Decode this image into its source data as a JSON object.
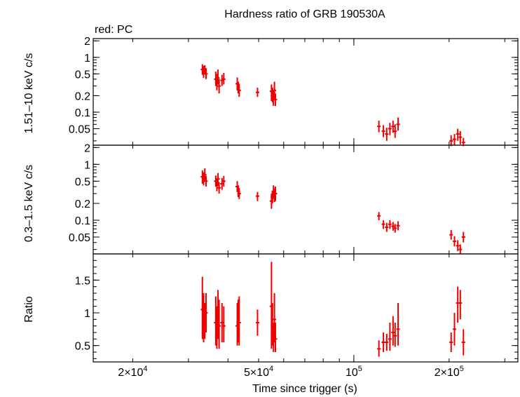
{
  "chart_data": {
    "type": "scatter",
    "title": "Hardness ratio of GRB 190530A",
    "subtitle": "red: PC",
    "xlabel": "Time since trigger (s)",
    "xscale": "log",
    "xlim": [
      15000,
      330000
    ],
    "x_ticks": [
      {
        "value": 20000,
        "mant": "2×10",
        "exp": "4"
      },
      {
        "value": 50000,
        "mant": "5×10",
        "exp": "4"
      },
      {
        "value": 100000,
        "mant": "10",
        "exp": "5"
      },
      {
        "value": 200000,
        "mant": "2×10",
        "exp": "5"
      }
    ],
    "series_color": "#ee0000",
    "panels": [
      {
        "id": "hard",
        "ylabel": "1.51–10 keV c/s",
        "yscale": "log",
        "ylim": [
          0.025,
          2.2
        ],
        "y_ticks": [
          {
            "value": 2,
            "label": "2"
          },
          {
            "value": 1,
            "label": "1"
          },
          {
            "value": 0.5,
            "label": "0.5"
          },
          {
            "value": 0.2,
            "label": "0.2"
          },
          {
            "value": 0.1,
            "label": "0.1"
          },
          {
            "value": 0.05,
            "label": "0.05"
          }
        ],
        "points": [
          {
            "x": 33200,
            "y": 0.6,
            "lo": 0.48,
            "hi": 0.75
          },
          {
            "x": 33500,
            "y": 0.55,
            "lo": 0.42,
            "hi": 0.7
          },
          {
            "x": 33800,
            "y": 0.62,
            "lo": 0.5,
            "hi": 0.72
          },
          {
            "x": 34100,
            "y": 0.5,
            "lo": 0.4,
            "hi": 0.63
          },
          {
            "x": 36600,
            "y": 0.4,
            "lo": 0.3,
            "hi": 0.55
          },
          {
            "x": 36900,
            "y": 0.35,
            "lo": 0.25,
            "hi": 0.5
          },
          {
            "x": 37200,
            "y": 0.42,
            "lo": 0.32,
            "hi": 0.6
          },
          {
            "x": 37500,
            "y": 0.3,
            "lo": 0.22,
            "hi": 0.4
          },
          {
            "x": 38300,
            "y": 0.38,
            "lo": 0.3,
            "hi": 0.48
          },
          {
            "x": 38800,
            "y": 0.4,
            "lo": 0.32,
            "hi": 0.52
          },
          {
            "x": 42800,
            "y": 0.33,
            "lo": 0.25,
            "hi": 0.43
          },
          {
            "x": 43100,
            "y": 0.28,
            "lo": 0.22,
            "hi": 0.36
          },
          {
            "x": 43400,
            "y": 0.25,
            "lo": 0.19,
            "hi": 0.33
          },
          {
            "x": 49600,
            "y": 0.23,
            "lo": 0.19,
            "hi": 0.28
          },
          {
            "x": 54900,
            "y": 0.24,
            "lo": 0.16,
            "hi": 0.32
          },
          {
            "x": 55300,
            "y": 0.2,
            "lo": 0.15,
            "hi": 0.28
          },
          {
            "x": 55700,
            "y": 0.18,
            "lo": 0.13,
            "hi": 0.25
          },
          {
            "x": 56100,
            "y": 0.25,
            "lo": 0.17,
            "hi": 0.36
          },
          {
            "x": 56500,
            "y": 0.17,
            "lo": 0.13,
            "hi": 0.22
          },
          {
            "x": 120000,
            "y": 0.055,
            "lo": 0.043,
            "hi": 0.07
          },
          {
            "x": 124000,
            "y": 0.045,
            "lo": 0.035,
            "hi": 0.058
          },
          {
            "x": 127000,
            "y": 0.04,
            "lo": 0.03,
            "hi": 0.052
          },
          {
            "x": 130000,
            "y": 0.05,
            "lo": 0.038,
            "hi": 0.064
          },
          {
            "x": 133000,
            "y": 0.055,
            "lo": 0.042,
            "hi": 0.07
          },
          {
            "x": 135000,
            "y": 0.045,
            "lo": 0.034,
            "hi": 0.06
          },
          {
            "x": 138000,
            "y": 0.06,
            "lo": 0.046,
            "hi": 0.08
          },
          {
            "x": 203000,
            "y": 0.03,
            "lo": 0.024,
            "hi": 0.038
          },
          {
            "x": 208000,
            "y": 0.032,
            "lo": 0.025,
            "hi": 0.04
          },
          {
            "x": 213000,
            "y": 0.04,
            "lo": 0.03,
            "hi": 0.05
          },
          {
            "x": 217000,
            "y": 0.035,
            "lo": 0.026,
            "hi": 0.045
          },
          {
            "x": 222000,
            "y": 0.028,
            "lo": 0.024,
            "hi": 0.034
          }
        ]
      },
      {
        "id": "soft",
        "ylabel": "0.3–1.5 keV c/s",
        "yscale": "log",
        "ylim": [
          0.025,
          2.2
        ],
        "y_ticks": [
          {
            "value": 2,
            "label": "2"
          },
          {
            "value": 1,
            "label": "1"
          },
          {
            "value": 0.5,
            "label": "0.5"
          },
          {
            "value": 0.2,
            "label": "0.2"
          },
          {
            "value": 0.1,
            "label": "0.1"
          },
          {
            "value": 0.05,
            "label": "0.05"
          }
        ],
        "points": [
          {
            "x": 33200,
            "y": 0.6,
            "lo": 0.45,
            "hi": 0.78
          },
          {
            "x": 33500,
            "y": 0.55,
            "lo": 0.42,
            "hi": 0.72
          },
          {
            "x": 33800,
            "y": 0.65,
            "lo": 0.5,
            "hi": 0.85
          },
          {
            "x": 34100,
            "y": 0.5,
            "lo": 0.4,
            "hi": 0.62
          },
          {
            "x": 36600,
            "y": 0.5,
            "lo": 0.4,
            "hi": 0.63
          },
          {
            "x": 36900,
            "y": 0.42,
            "lo": 0.33,
            "hi": 0.55
          },
          {
            "x": 37200,
            "y": 0.55,
            "lo": 0.43,
            "hi": 0.7
          },
          {
            "x": 37500,
            "y": 0.38,
            "lo": 0.3,
            "hi": 0.48
          },
          {
            "x": 38300,
            "y": 0.45,
            "lo": 0.35,
            "hi": 0.57
          },
          {
            "x": 38800,
            "y": 0.5,
            "lo": 0.4,
            "hi": 0.62
          },
          {
            "x": 42800,
            "y": 0.4,
            "lo": 0.32,
            "hi": 0.5
          },
          {
            "x": 43100,
            "y": 0.33,
            "lo": 0.26,
            "hi": 0.42
          },
          {
            "x": 43400,
            "y": 0.3,
            "lo": 0.24,
            "hi": 0.38
          },
          {
            "x": 49600,
            "y": 0.27,
            "lo": 0.22,
            "hi": 0.32
          },
          {
            "x": 54900,
            "y": 0.22,
            "lo": 0.16,
            "hi": 0.3
          },
          {
            "x": 55300,
            "y": 0.26,
            "lo": 0.2,
            "hi": 0.34
          },
          {
            "x": 55700,
            "y": 0.32,
            "lo": 0.24,
            "hi": 0.42
          },
          {
            "x": 56100,
            "y": 0.28,
            "lo": 0.21,
            "hi": 0.37
          },
          {
            "x": 56500,
            "y": 0.3,
            "lo": 0.22,
            "hi": 0.4
          },
          {
            "x": 120000,
            "y": 0.12,
            "lo": 0.1,
            "hi": 0.14
          },
          {
            "x": 124000,
            "y": 0.085,
            "lo": 0.07,
            "hi": 0.1
          },
          {
            "x": 127000,
            "y": 0.075,
            "lo": 0.062,
            "hi": 0.09
          },
          {
            "x": 130000,
            "y": 0.085,
            "lo": 0.07,
            "hi": 0.1
          },
          {
            "x": 133000,
            "y": 0.078,
            "lo": 0.065,
            "hi": 0.093
          },
          {
            "x": 135000,
            "y": 0.072,
            "lo": 0.06,
            "hi": 0.086
          },
          {
            "x": 138000,
            "y": 0.08,
            "lo": 0.066,
            "hi": 0.096
          },
          {
            "x": 203000,
            "y": 0.055,
            "lo": 0.045,
            "hi": 0.067
          },
          {
            "x": 208000,
            "y": 0.042,
            "lo": 0.034,
            "hi": 0.052
          },
          {
            "x": 213000,
            "y": 0.035,
            "lo": 0.028,
            "hi": 0.044
          },
          {
            "x": 217000,
            "y": 0.03,
            "lo": 0.025,
            "hi": 0.037
          },
          {
            "x": 222000,
            "y": 0.05,
            "lo": 0.04,
            "hi": 0.062
          }
        ]
      },
      {
        "id": "ratio",
        "ylabel": "Ratio",
        "yscale": "linear",
        "ylim": [
          0.25,
          1.9
        ],
        "y_ticks": [
          {
            "value": 0.5,
            "label": "0.5"
          },
          {
            "value": 1,
            "label": "1"
          },
          {
            "value": 1.5,
            "label": "1.5"
          }
        ],
        "points": [
          {
            "x": 33200,
            "y": 1.05,
            "lo": 0.6,
            "hi": 1.55
          },
          {
            "x": 33500,
            "y": 0.95,
            "lo": 0.55,
            "hi": 1.3
          },
          {
            "x": 33800,
            "y": 0.85,
            "lo": 0.6,
            "hi": 1.15
          },
          {
            "x": 34100,
            "y": 1.0,
            "lo": 0.7,
            "hi": 1.3
          },
          {
            "x": 36600,
            "y": 0.85,
            "lo": 0.5,
            "hi": 1.25
          },
          {
            "x": 36900,
            "y": 0.75,
            "lo": 0.45,
            "hi": 1.1
          },
          {
            "x": 37200,
            "y": 0.95,
            "lo": 0.6,
            "hi": 1.35
          },
          {
            "x": 37500,
            "y": 0.8,
            "lo": 0.45,
            "hi": 1.2
          },
          {
            "x": 38300,
            "y": 0.85,
            "lo": 0.55,
            "hi": 1.15
          },
          {
            "x": 38800,
            "y": 0.8,
            "lo": 0.55,
            "hi": 1.1
          },
          {
            "x": 42800,
            "y": 0.8,
            "lo": 0.5,
            "hi": 1.15
          },
          {
            "x": 43100,
            "y": 0.85,
            "lo": 0.55,
            "hi": 1.2
          },
          {
            "x": 43400,
            "y": 0.85,
            "lo": 0.5,
            "hi": 1.25
          },
          {
            "x": 49600,
            "y": 0.85,
            "lo": 0.65,
            "hi": 1.05
          },
          {
            "x": 54900,
            "y": 1.1,
            "lo": 0.45,
            "hi": 1.78
          },
          {
            "x": 55300,
            "y": 0.8,
            "lo": 0.5,
            "hi": 1.15
          },
          {
            "x": 55700,
            "y": 0.6,
            "lo": 0.4,
            "hi": 0.85
          },
          {
            "x": 56100,
            "y": 0.9,
            "lo": 0.55,
            "hi": 1.3
          },
          {
            "x": 56500,
            "y": 0.6,
            "lo": 0.4,
            "hi": 0.85
          },
          {
            "x": 120000,
            "y": 0.45,
            "lo": 0.33,
            "hi": 0.58
          },
          {
            "x": 124000,
            "y": 0.55,
            "lo": 0.4,
            "hi": 0.7
          },
          {
            "x": 127000,
            "y": 0.55,
            "lo": 0.42,
            "hi": 0.68
          },
          {
            "x": 130000,
            "y": 0.6,
            "lo": 0.42,
            "hi": 0.85
          },
          {
            "x": 133000,
            "y": 0.7,
            "lo": 0.5,
            "hi": 0.95
          },
          {
            "x": 135000,
            "y": 0.65,
            "lo": 0.48,
            "hi": 0.85
          },
          {
            "x": 138000,
            "y": 0.75,
            "lo": 0.5,
            "hi": 1.15
          },
          {
            "x": 203000,
            "y": 0.55,
            "lo": 0.4,
            "hi": 0.7
          },
          {
            "x": 208000,
            "y": 0.75,
            "lo": 0.5,
            "hi": 1.0
          },
          {
            "x": 213000,
            "y": 1.15,
            "lo": 0.85,
            "hi": 1.4
          },
          {
            "x": 217000,
            "y": 1.15,
            "lo": 0.9,
            "hi": 1.35
          },
          {
            "x": 222000,
            "y": 0.55,
            "lo": 0.35,
            "hi": 0.75
          }
        ]
      }
    ]
  }
}
